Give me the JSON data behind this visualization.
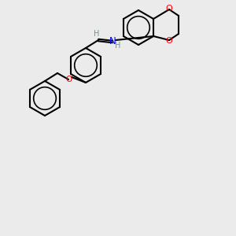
{
  "background_color": "#ebebeb",
  "bond_color": "#000000",
  "bond_width": 1.5,
  "atom_colors": {
    "O": "#ff0000",
    "N": "#0000ff",
    "H": "#7a9090",
    "C": "#000000"
  },
  "font_size": 7.5,
  "fig_width": 3.0,
  "fig_height": 3.0,
  "dpi": 100
}
